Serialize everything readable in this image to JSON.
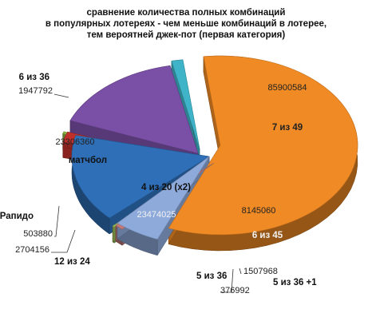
{
  "chart_data": {
    "type": "pie",
    "title": [
      "сравнение количества полных комбинаций",
      "в популярных лотереях - чем меньше комбинаций в лотерее,",
      "тем вероятней джек-пот (первая категория)"
    ],
    "slices": [
      {
        "name": "7 из 49",
        "value": 85900584,
        "value_label": "85900584",
        "color": "#f08a24"
      },
      {
        "name": "6 из 45",
        "value": 8145060,
        "value_label": "8145060",
        "color": "#8eaadb"
      },
      {
        "name": "5 из 36 +1",
        "value": 1507968,
        "value_label": "1507968",
        "color": "#c07878"
      },
      {
        "name": "5 из 36",
        "value": 376992,
        "value_label": "376992",
        "color": "#9bbb59"
      },
      {
        "name": "4 из 20 (x2)",
        "value": 23474025,
        "value_label": "23474025",
        "color": "#2e6fb8"
      },
      {
        "name": "12 из 24",
        "value": 2704156,
        "value_label": "2704156",
        "color": "#c0302b"
      },
      {
        "name": "Рапидо",
        "value": 503880,
        "value_label": "503880",
        "color": "#8db63f"
      },
      {
        "name": "матчбол",
        "value": 23306360,
        "value_label": "23306360",
        "color": "#7a4fa6"
      },
      {
        "name": "6 из 36",
        "value": 1947792,
        "value_label": "1947792",
        "color": "#3fb4c8"
      }
    ]
  }
}
